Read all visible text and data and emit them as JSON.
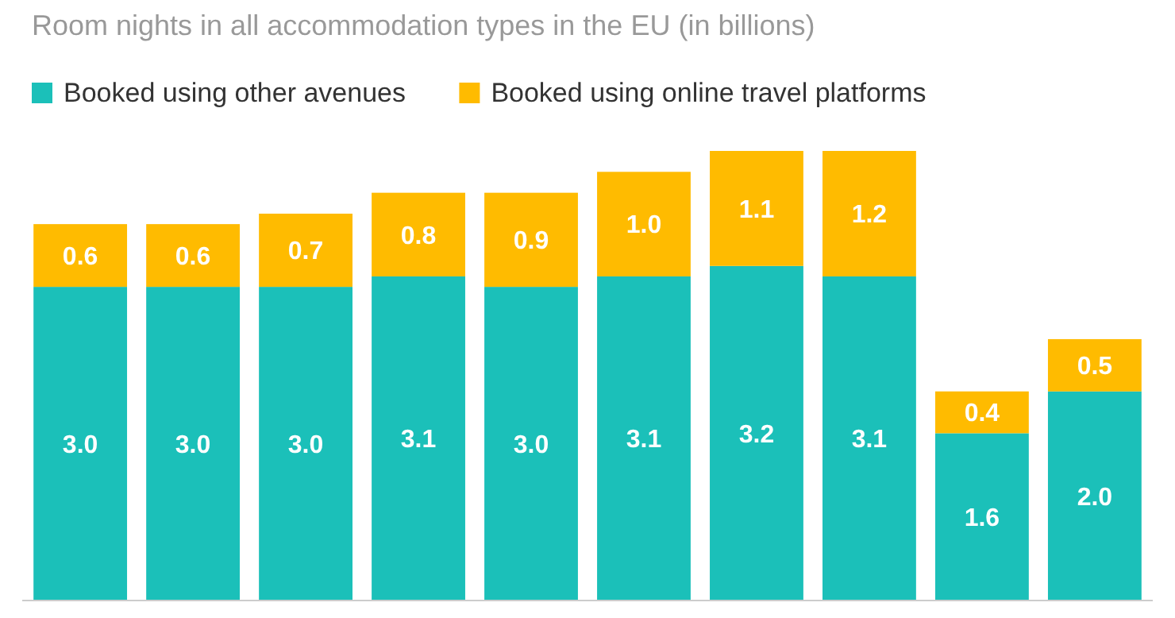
{
  "chart_data": {
    "type": "bar",
    "subtitle": "Room nights in all accommodation types in the EU (in billions)",
    "categories": [
      null,
      null,
      null,
      null,
      null,
      null,
      null,
      null,
      null,
      null
    ],
    "stacked": true,
    "legend": "top left",
    "series": [
      {
        "name": "Booked using other avenues",
        "color": "#1bc0b9",
        "values": [
          3.0,
          3.0,
          3.0,
          3.1,
          3.0,
          3.1,
          3.2,
          3.1,
          1.6,
          2.0
        ],
        "value_labels": [
          "3.0",
          "3.0",
          "3.0",
          "3.1",
          "3.0",
          "3.1",
          "3.2",
          "3.1",
          "1.6",
          "2.0"
        ]
      },
      {
        "name": "Booked using online travel platforms",
        "color": "#ffbb00",
        "values": [
          0.6,
          0.6,
          0.7,
          0.8,
          0.9,
          1.0,
          1.1,
          1.2,
          0.4,
          0.5
        ],
        "value_labels": [
          "0.6",
          "0.6",
          "0.7",
          "0.8",
          "0.9",
          "1.0",
          "1.1",
          "1.2",
          "0.4",
          "0.5"
        ]
      }
    ]
  }
}
